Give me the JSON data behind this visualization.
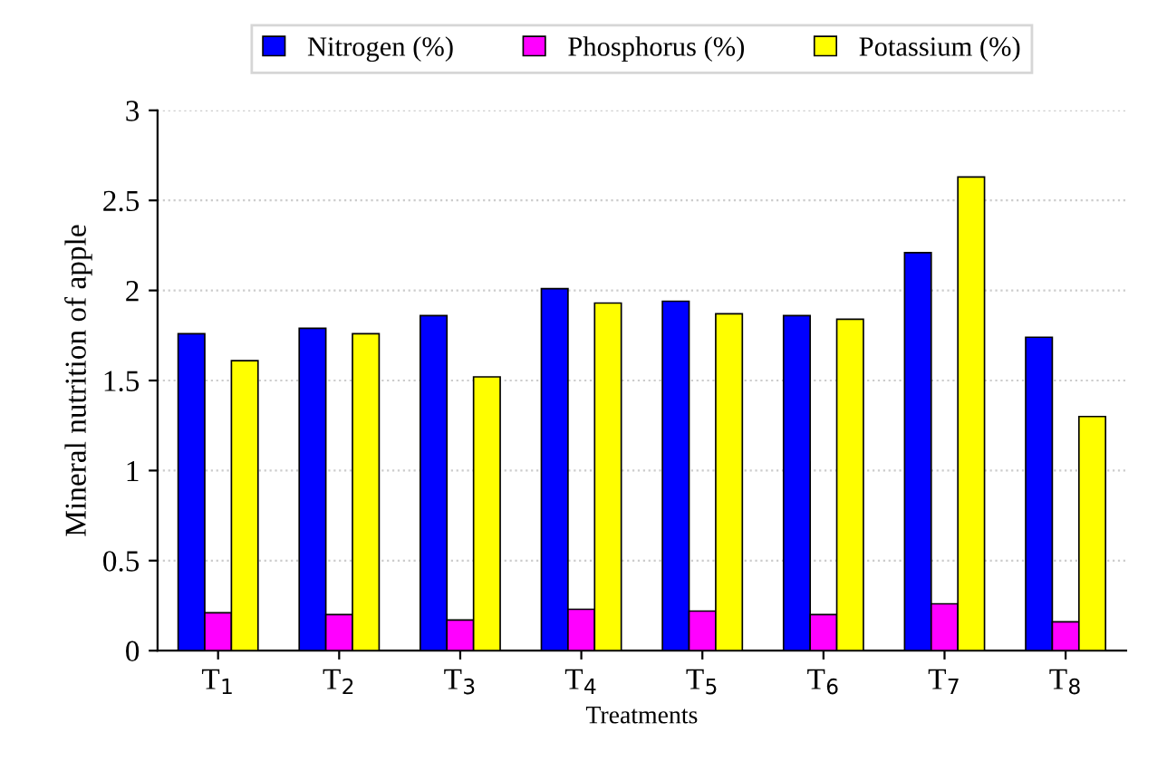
{
  "chart_data": {
    "type": "bar",
    "xlabel": "Treatments",
    "ylabel": "Mineral nutrition of apple",
    "categories": [
      "T$_{1}$",
      "T$_{2}$",
      "T$_{3}$",
      "T$_{4}$",
      "T$_{5}$",
      "T$_{6}$",
      "T$_{7}$",
      "T$_{8}$"
    ],
    "series": [
      {
        "name": "Nitrogen (%)",
        "color": "#0000ff",
        "values": [
          1.76,
          1.79,
          1.86,
          2.01,
          1.94,
          1.86,
          2.21,
          1.74
        ]
      },
      {
        "name": "Phosphorus (%)",
        "color": "#ff00ff",
        "values": [
          0.21,
          0.2,
          0.17,
          0.23,
          0.22,
          0.2,
          0.26,
          0.16
        ]
      },
      {
        "name": "Potassium (%)",
        "color": "#ffff00",
        "values": [
          1.61,
          1.76,
          1.52,
          1.93,
          1.87,
          1.84,
          2.63,
          1.3
        ]
      }
    ],
    "ylim": [
      0,
      3
    ],
    "yticks": [
      0,
      0.5,
      1,
      1.5,
      2,
      2.5,
      3
    ],
    "grid": "y",
    "legend": "top"
  }
}
